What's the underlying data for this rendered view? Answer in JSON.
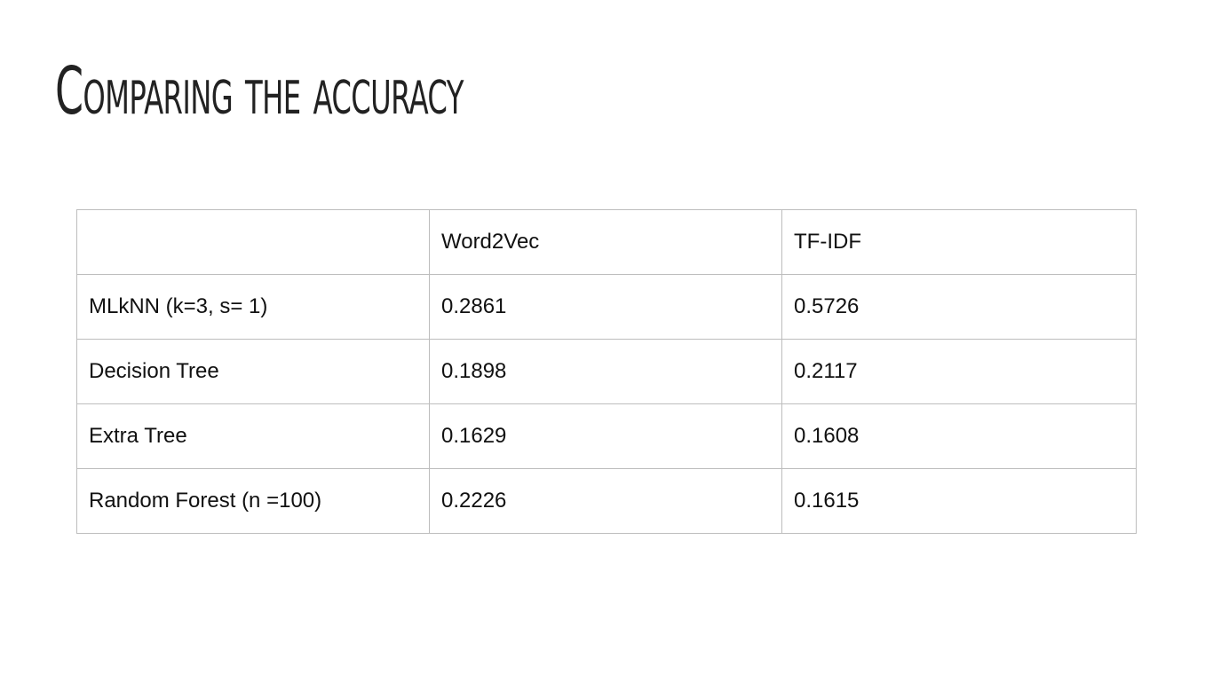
{
  "slide": {
    "title": "Comparing the accuracy"
  },
  "table": {
    "headers": [
      "",
      "Word2Vec",
      "TF-IDF"
    ],
    "rows": [
      [
        "MLkNN (k=3, s= 1)",
        "0.2861",
        "0.5726"
      ],
      [
        "Decision Tree",
        "0.1898",
        "0.2117"
      ],
      [
        "Extra Tree",
        "0.1629",
        "0.1608"
      ],
      [
        "Random Forest (n =100)",
        "0.2226",
        "0.1615"
      ]
    ]
  }
}
